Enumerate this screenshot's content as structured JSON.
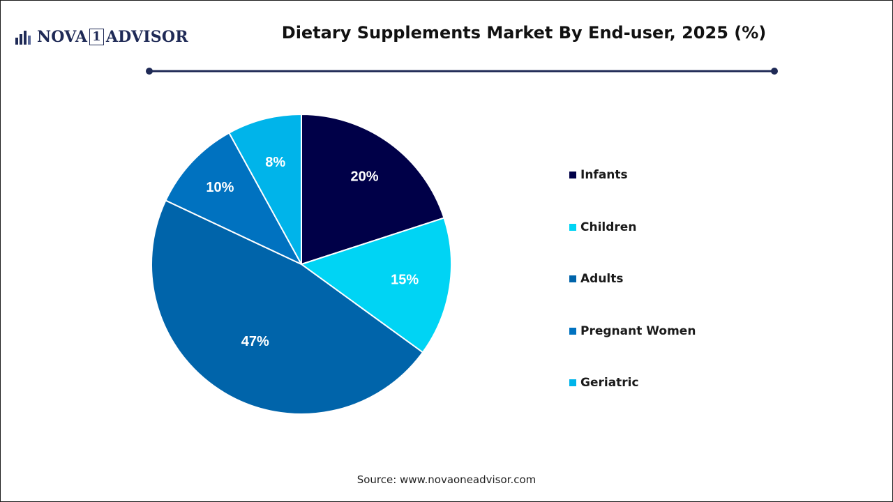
{
  "logo": {
    "text_before": "NOVA",
    "boxed": "1",
    "text_after": "ADVISOR"
  },
  "header": {
    "title": "Dietary Supplements Market By End-user, 2025 (%)"
  },
  "footer": {
    "source": "Source: www.novaoneadvisor.com"
  },
  "colors": {
    "title_rule": "#1f2a56",
    "label_text": "#ffffff",
    "slice_border": "#ffffff"
  },
  "chart_data": {
    "type": "pie",
    "title": "Dietary Supplements Market By End-user, 2025 (%)",
    "unit": "%",
    "start_angle_deg": 0,
    "direction": "clockwise",
    "legend_position": "right",
    "categories": [
      "Infants",
      "Children",
      "Adults",
      "Pregnant Women",
      "Geriatric"
    ],
    "values": [
      20,
      15,
      47,
      10,
      8
    ],
    "data_labels": [
      "20%",
      "15%",
      "47%",
      "10%",
      "8%"
    ],
    "colors": [
      "#000048",
      "#00d4f4",
      "#0064aa",
      "#0072c0",
      "#00b4ea"
    ]
  }
}
